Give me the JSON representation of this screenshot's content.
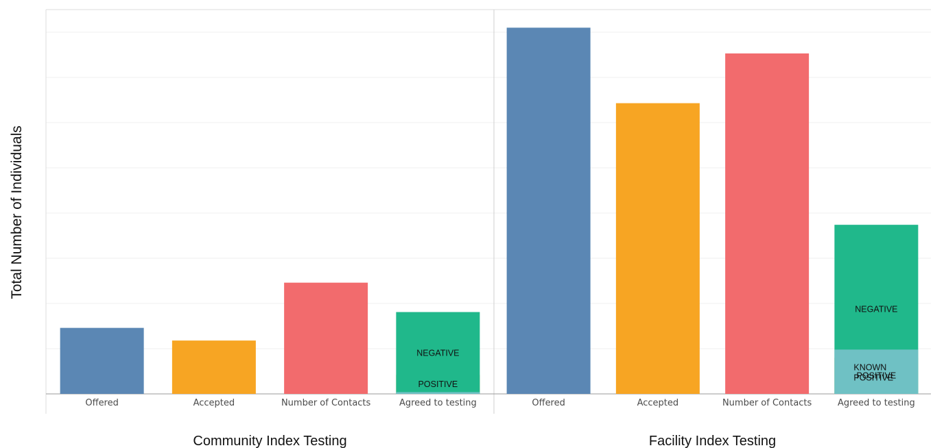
{
  "chart_data": {
    "type": "bar",
    "ylabel": "Total Number of Individuals",
    "xlabel": "",
    "ylim": [
      0,
      850
    ],
    "grid": true,
    "gridlines": [
      100,
      200,
      300,
      400,
      500,
      600,
      700,
      800
    ],
    "panels": [
      {
        "title": "Community Index Testing",
        "categories": [
          "Offered",
          "Accepted",
          "Number of Contacts",
          "Agreed to testing"
        ],
        "bars": [
          {
            "category": "Offered",
            "value": 146,
            "color": "#5b87b4"
          },
          {
            "category": "Accepted",
            "value": 118,
            "color": "#f7a523"
          },
          {
            "category": "Number of Contacts",
            "value": 246,
            "color": "#f26b6d"
          },
          {
            "category": "Agreed to testing",
            "stacked": true,
            "segments": [
              {
                "name": "POSITIVE",
                "value": 42,
                "color": "#bdb531"
              },
              {
                "name": "NEGATIVE",
                "value": 181,
                "color": "#20b88b"
              },
              {
                "name": "",
                "value": 4,
                "color": "#6fc1c4"
              }
            ]
          }
        ]
      },
      {
        "title": "Facility Index Testing",
        "categories": [
          "Offered",
          "Accepted",
          "Number of Contacts",
          "Agreed to testing"
        ],
        "bars": [
          {
            "category": "Offered",
            "value": 810,
            "color": "#5b87b4"
          },
          {
            "category": "Accepted",
            "value": 643,
            "color": "#f7a523"
          },
          {
            "category": "Number of Contacts",
            "value": 753,
            "color": "#f26b6d"
          },
          {
            "category": "Agreed to testing",
            "stacked": true,
            "segments": [
              {
                "name": "POSITIVE",
                "value": 80,
                "color": "#bdb531"
              },
              {
                "name": "NEGATIVE",
                "value": 374,
                "color": "#20b88b"
              },
              {
                "name": "KNOWN POSITIVE",
                "value": 98,
                "color": "#6fc1c4"
              }
            ]
          }
        ]
      }
    ]
  }
}
